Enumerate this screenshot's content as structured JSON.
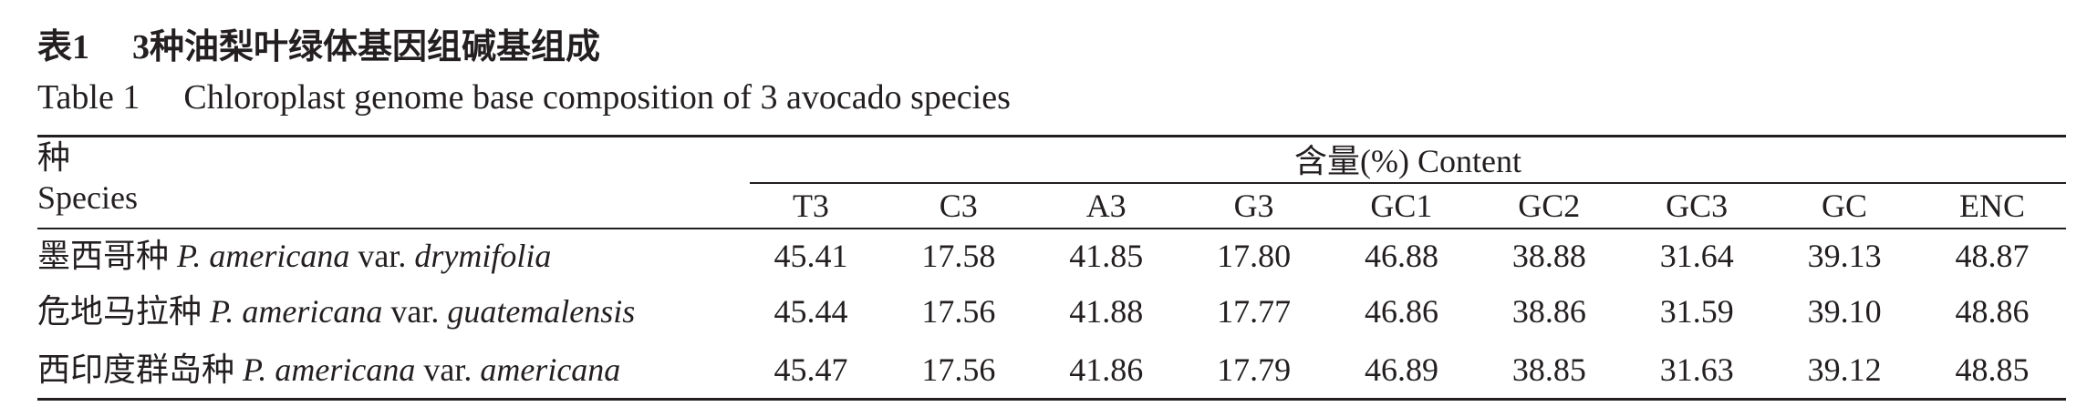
{
  "title": {
    "label": "表1",
    "text": "3种油梨叶绿体基因组碱基组成"
  },
  "caption": {
    "label": "Table 1",
    "text": "Chloroplast genome base composition of 3 avocado species"
  },
  "table": {
    "species_header": {
      "zh": "种",
      "en": "Species"
    },
    "content_header": "含量(%) Content",
    "columns": [
      "T3",
      "C3",
      "A3",
      "G3",
      "GC1",
      "GC2",
      "GC3",
      "GC",
      "ENC"
    ],
    "rows": [
      {
        "species_zh": "墨西哥种",
        "species_latin": "P. americana",
        "var_label": "var.",
        "variety": "drymifolia",
        "values": [
          "45.41",
          "17.58",
          "41.85",
          "17.80",
          "46.88",
          "38.88",
          "31.64",
          "39.13",
          "48.87"
        ]
      },
      {
        "species_zh": "危地马拉种",
        "species_latin": "P. americana",
        "var_label": "var.",
        "variety": "guatemalensis",
        "values": [
          "45.44",
          "17.56",
          "41.88",
          "17.77",
          "46.86",
          "38.86",
          "31.59",
          "39.10",
          "48.86"
        ]
      },
      {
        "species_zh": "西印度群岛种",
        "species_latin": "P. americana",
        "var_label": "var.",
        "variety": "americana",
        "values": [
          "45.47",
          "17.56",
          "41.86",
          "17.79",
          "46.89",
          "38.85",
          "31.63",
          "39.12",
          "48.85"
        ]
      }
    ]
  },
  "colors": {
    "text": "#231f20",
    "rules": "#231f20",
    "background": "#ffffff"
  }
}
